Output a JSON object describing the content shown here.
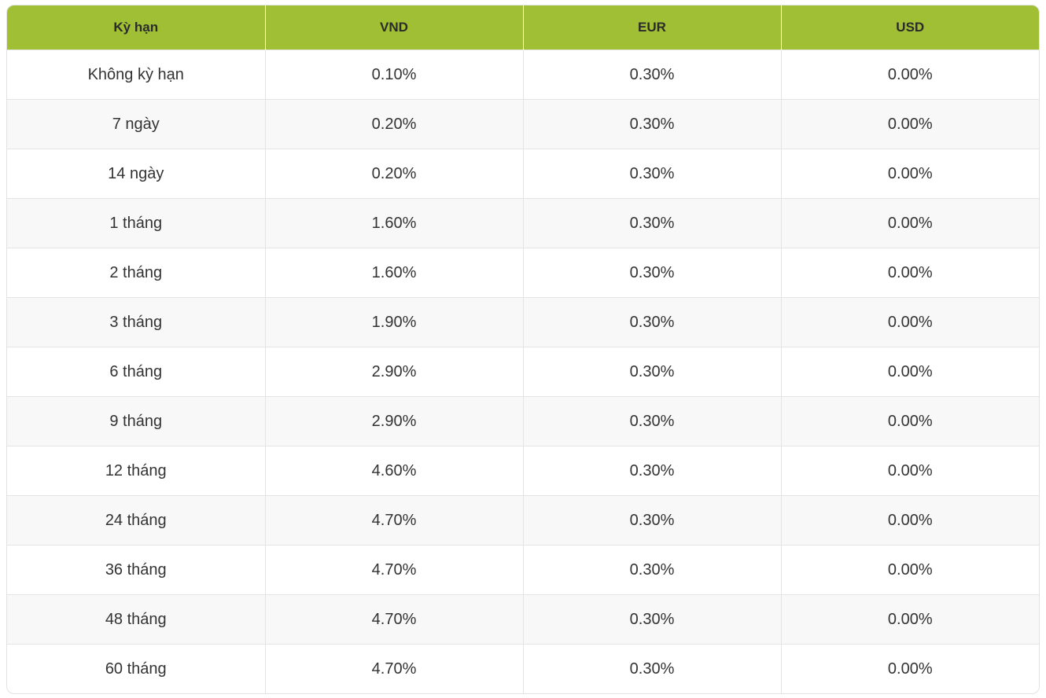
{
  "table": {
    "headers": [
      "Kỳ hạn",
      "VND",
      "EUR",
      "USD"
    ],
    "rows": [
      [
        "Không kỳ hạn",
        "0.10%",
        "0.30%",
        "0.00%"
      ],
      [
        "7 ngày",
        "0.20%",
        "0.30%",
        "0.00%"
      ],
      [
        "14 ngày",
        "0.20%",
        "0.30%",
        "0.00%"
      ],
      [
        "1 tháng",
        "1.60%",
        "0.30%",
        "0.00%"
      ],
      [
        "2 tháng",
        "1.60%",
        "0.30%",
        "0.00%"
      ],
      [
        "3 tháng",
        "1.90%",
        "0.30%",
        "0.00%"
      ],
      [
        "6 tháng",
        "2.90%",
        "0.30%",
        "0.00%"
      ],
      [
        "9 tháng",
        "2.90%",
        "0.30%",
        "0.00%"
      ],
      [
        "12 tháng",
        "4.60%",
        "0.30%",
        "0.00%"
      ],
      [
        "24 tháng",
        "4.70%",
        "0.30%",
        "0.00%"
      ],
      [
        "36 tháng",
        "4.70%",
        "0.30%",
        "0.00%"
      ],
      [
        "48 tháng",
        "4.70%",
        "0.30%",
        "0.00%"
      ],
      [
        "60 tháng",
        "4.70%",
        "0.30%",
        "0.00%"
      ]
    ]
  },
  "colors": {
    "header_background": "#a0bf35",
    "header_text": "#2b2b2b",
    "row_alt_background": "#f8f8f8",
    "border": "#e4e4e4"
  }
}
